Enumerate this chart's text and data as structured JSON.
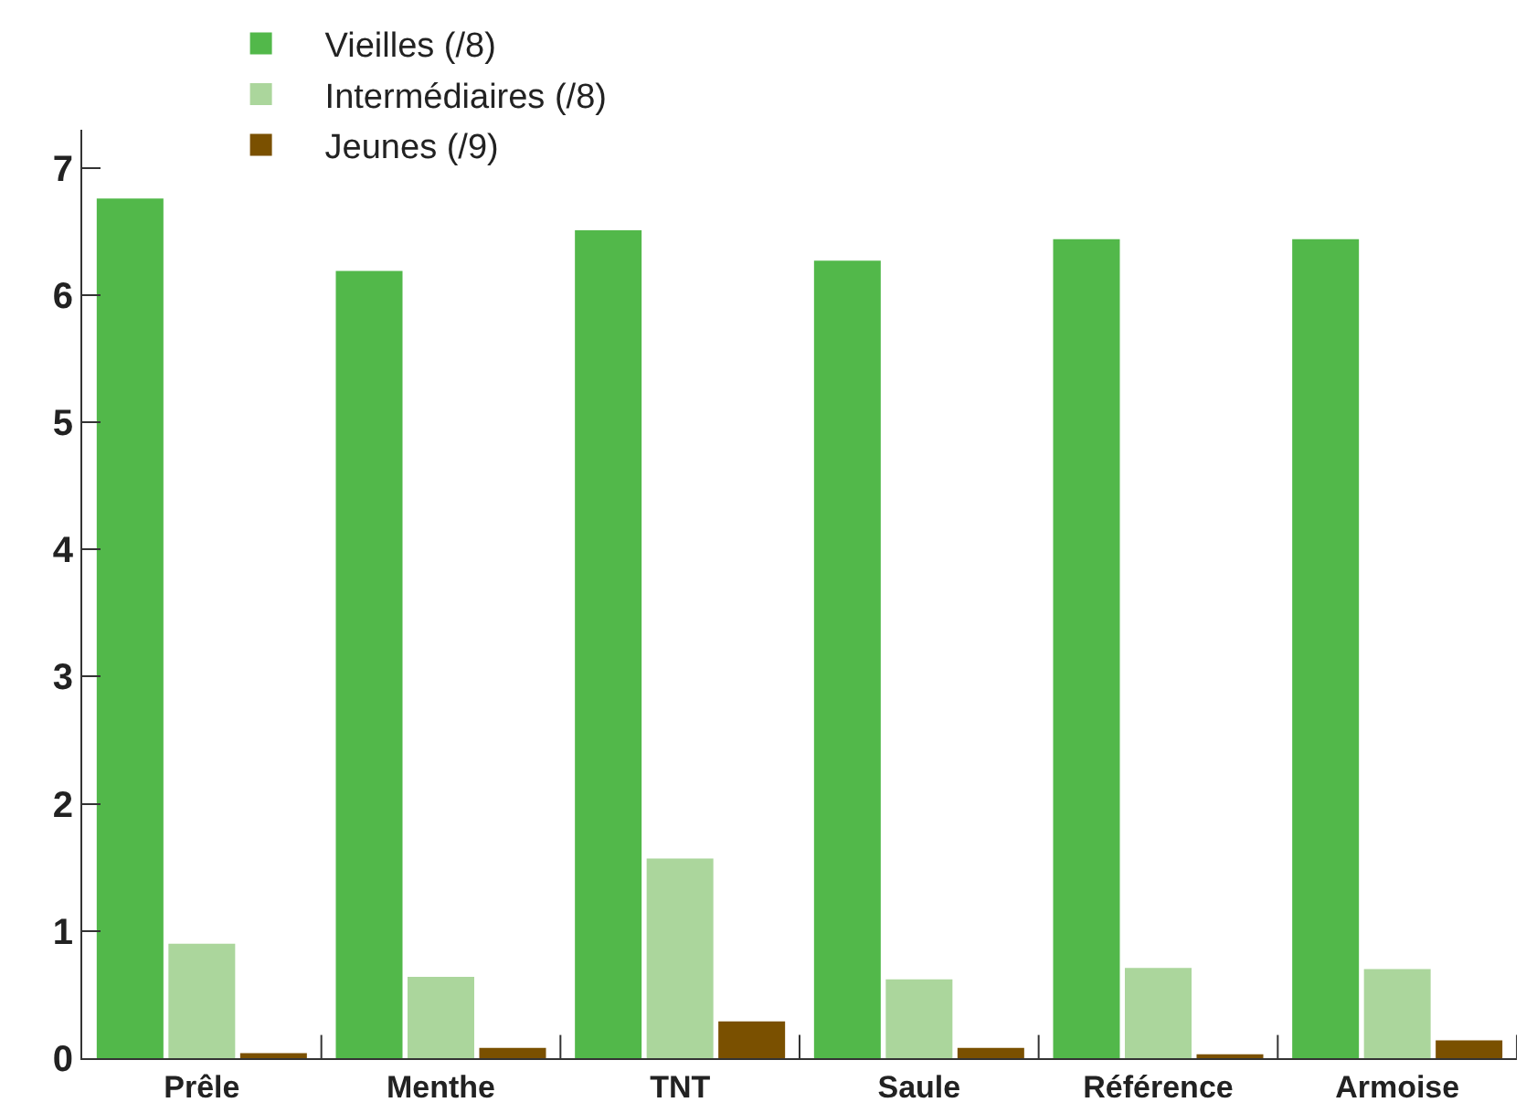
{
  "chart_data": {
    "type": "bar",
    "categories": [
      "Prêle",
      "Menthe",
      "TNT",
      "Saule",
      "Référence",
      "Armoise"
    ],
    "series": [
      {
        "name": "Vieilles (/8)",
        "color": "#52b84a",
        "values": [
          6.76,
          6.19,
          6.51,
          6.27,
          6.44,
          6.44
        ]
      },
      {
        "name": "Intermédiaires (/8)",
        "color": "#abd69c",
        "values": [
          0.9,
          0.64,
          1.57,
          0.62,
          0.71,
          0.7
        ]
      },
      {
        "name": "Jeunes (/9)",
        "color": "#7a5000",
        "values": [
          0.04,
          0.08,
          0.29,
          0.08,
          0.03,
          0.14
        ]
      }
    ],
    "ylim": [
      0,
      7.3
    ],
    "yticks": [
      0,
      1,
      2,
      3,
      4,
      5,
      6,
      7
    ],
    "legend": "top left"
  }
}
